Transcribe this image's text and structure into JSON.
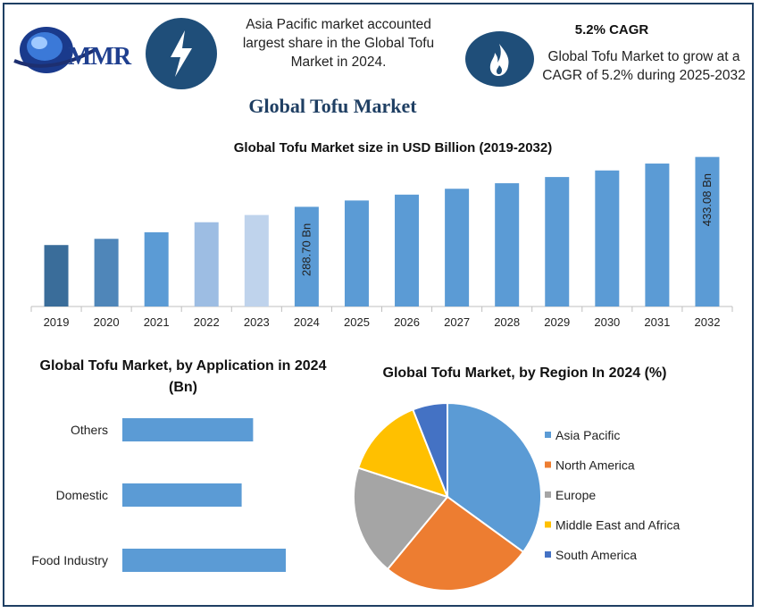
{
  "header": {
    "logo_text": "MMR",
    "info1_text": "Asia Pacific market accounted largest share in the Global Tofu Market in 2024.",
    "info2_title": "5.2% CAGR",
    "info2_text": "Global Tofu Market to grow at a CAGR of 5.2% during 2025-2032"
  },
  "icons": {
    "info1": "lightning-bolt-icon",
    "info2": "flame-icon"
  },
  "main_title": "Global Tofu Market",
  "colors": {
    "bar_blue": "#5b9bd5",
    "dark_navy": "#1f4e79",
    "frame": "#1f3f63"
  },
  "chart_data": [
    {
      "type": "bar",
      "title": "Global Tofu Market size in USD Billion (2019-2032)",
      "categories": [
        "2019",
        "2020",
        "2021",
        "2022",
        "2023",
        "2024",
        "2025",
        "2026",
        "2027",
        "2028",
        "2029",
        "2030",
        "2031",
        "2032"
      ],
      "values": [
        178,
        196,
        215,
        244,
        265,
        288.7,
        307,
        324,
        341,
        357,
        375,
        394,
        414,
        433.08
      ],
      "bar_colors": [
        "#3a6d9a",
        "#4f86b9",
        "#5b9bd5",
        "#9dbde3",
        "#bfd3ec",
        "#5b9bd5",
        "#5b9bd5",
        "#5b9bd5",
        "#5b9bd5",
        "#5b9bd5",
        "#5b9bd5",
        "#5b9bd5",
        "#5b9bd5",
        "#5b9bd5"
      ],
      "data_labels": {
        "2024": "288.70 Bn",
        "2032": "433.08 Bn"
      },
      "ylim": [
        0,
        450
      ]
    },
    {
      "type": "bar",
      "orientation": "horizontal",
      "title": "Global Tofu Market, by Application in 2024 (Bn)",
      "categories": [
        "Others",
        "Domestic",
        "Food Industry"
      ],
      "values": [
        80,
        73,
        100
      ],
      "color": "#5b9bd5"
    },
    {
      "type": "pie",
      "title": "Global Tofu Market, by Region In 2024 (%)",
      "labels": [
        "Asia Pacific",
        "North America",
        "Europe",
        "Middle East and Africa",
        "South America"
      ],
      "values": [
        35,
        26,
        19,
        14,
        6
      ],
      "colors": [
        "#5b9bd5",
        "#ed7d31",
        "#a5a5a5",
        "#ffc000",
        "#4472c4"
      ]
    }
  ]
}
